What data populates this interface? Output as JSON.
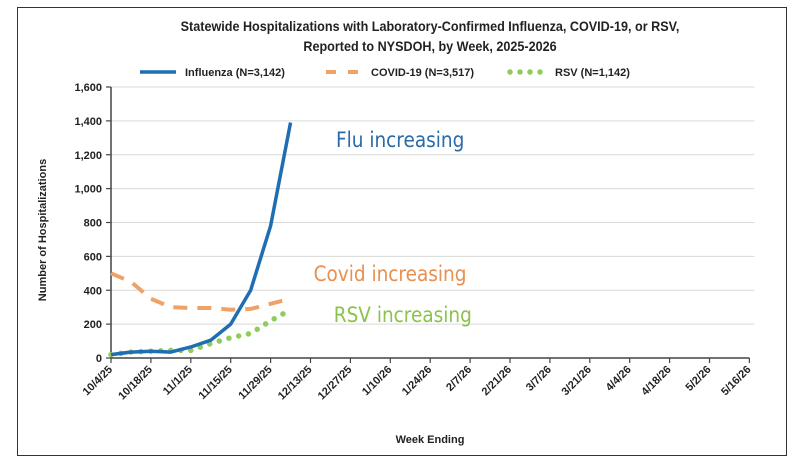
{
  "chart_data": {
    "type": "line",
    "title": [
      "Statewide Hospitalizations with Laboratory-Confirmed  Influenza, COVID-19, or RSV,",
      "Reported to NYSDOH, by Week, 2025-2026"
    ],
    "xlabel": "Week Ending",
    "ylabel": "Number of Hospitalizations",
    "ylim": [
      0,
      1600
    ],
    "yticks": [
      "0",
      "200",
      "400",
      "600",
      "800",
      "1,000",
      "1,200",
      "1,400",
      "1,600"
    ],
    "xtick_labels": [
      "10/4/25",
      "10/18/25",
      "11/1/25",
      "11/15/25",
      "11/29/25",
      "12/13/25",
      "12/27/25",
      "1/10/26",
      "1/24/26",
      "2/7/26",
      "2/21/26",
      "3/7/26",
      "3/21/26",
      "4/4/26",
      "4/18/26",
      "5/2/26",
      "5/16/26"
    ],
    "x": [
      "10/4/25",
      "10/11/25",
      "10/18/25",
      "10/25/25",
      "11/1/25",
      "11/8/25",
      "11/15/25",
      "11/22/25",
      "11/29/25",
      "12/6/25"
    ],
    "grid": true,
    "legend_position": "top",
    "series": [
      {
        "name": "Influenza (N=3,142)",
        "color": "#1f6db3",
        "style": "solid",
        "values": [
          20,
          35,
          40,
          35,
          65,
          105,
          200,
          400,
          780,
          1390
        ]
      },
      {
        "name": "COVID-19 (N=3,517)",
        "color": "#f0a266",
        "style": "dashed",
        "values": [
          500,
          450,
          350,
          300,
          295,
          295,
          285,
          290,
          320,
          350
        ]
      },
      {
        "name": "RSV (N=1,142)",
        "color": "#8fcc5a",
        "style": "dotted",
        "values": [
          20,
          35,
          40,
          45,
          45,
          85,
          120,
          145,
          220,
          285
        ]
      }
    ],
    "annotations": [
      {
        "text": "Flu increasing",
        "color": "#2a6aa8"
      },
      {
        "text": "Covid increasing",
        "color": "#e8904f"
      },
      {
        "text": "RSV increasing",
        "color": "#8bc34a"
      }
    ]
  }
}
